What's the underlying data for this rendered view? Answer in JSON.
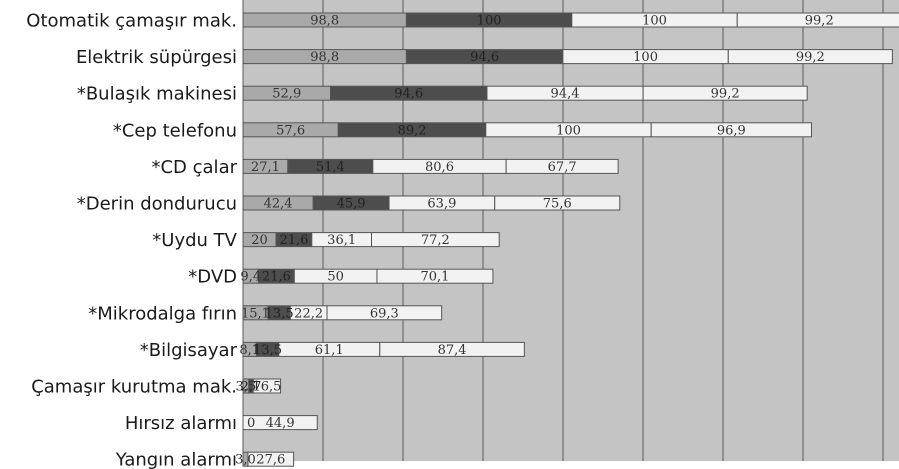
{
  "chart_data": {
    "type": "bar",
    "stacked": true,
    "orientation": "horizontal",
    "title": "",
    "xlabel": "",
    "ylabel": "",
    "grid": true,
    "legend": "none",
    "categories": [
      "Otomatik çamaşır mak.",
      "Elektrik süpürgesi",
      "*Bulaşık makinesi",
      "*Cep telefonu",
      "*CD çalar",
      "*Derin dondurucu",
      "*Uydu TV",
      "*DVD",
      "*Mikrodalga fırın",
      "*Bilgisayar",
      "Çamaşır kurutma mak.",
      "Hırsız alarmı",
      "Yangın alarmı"
    ],
    "series": [
      {
        "color": "#a9a9a9",
        "values": [
          98.8,
          98.8,
          52.9,
          57.6,
          27.1,
          42.4,
          20,
          9.4,
          15.1,
          8.1,
          3.5,
          0,
          3.0
        ],
        "labels": [
          "98,8",
          "98,8",
          "52,9",
          "57,6",
          "27,1",
          "42,4",
          "20",
          "9,4",
          "15,1",
          "8,1",
          "3,5",
          "0",
          "3,0"
        ]
      },
      {
        "color": "#4d4d4d",
        "values": [
          100,
          94.6,
          94.6,
          89.2,
          51.4,
          45.9,
          21.6,
          21.6,
          13.5,
          13.5,
          2.7,
          0,
          0
        ],
        "labels": [
          "100",
          "94,6",
          "94,6",
          "89,2",
          "51,4",
          "45,9",
          "21,6",
          "21,6",
          "13,5",
          "13,5",
          "2,7",
          "",
          ""
        ]
      },
      {
        "color": "#f2f2f2",
        "values": [
          100,
          100,
          94.4,
          100,
          80.6,
          63.9,
          36.1,
          50,
          22.2,
          61.1,
          16.5,
          44.9,
          27.6
        ],
        "labels": [
          "100",
          "100",
          "94,4",
          "100",
          "80,6",
          "63,9",
          "36,1",
          "50",
          "22,2",
          "61,1",
          "16,5",
          "44,9",
          "27,6"
        ]
      },
      {
        "color": "#f2f2f2",
        "values": [
          99.2,
          99.2,
          99.2,
          96.9,
          67.7,
          75.6,
          77.2,
          70.1,
          69.3,
          87.4,
          0,
          0,
          0
        ],
        "labels": [
          "99,2",
          "99,2",
          "99,2",
          "96,9",
          "67,7",
          "75,6",
          "77,2",
          "70,1",
          "69,3",
          "87,4",
          "",
          "",
          ""
        ]
      }
    ],
    "colors": {
      "plot_background": "#c4c4c4",
      "gridline": "#5a5a5a",
      "bar_border": "#555555",
      "label_on_light": "#333333",
      "label_on_dark": "#222222"
    }
  }
}
